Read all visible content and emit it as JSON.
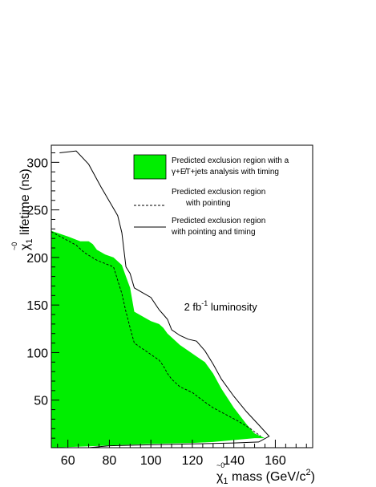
{
  "chart_data": {
    "type": "area",
    "xlim": [
      52,
      178
    ],
    "ylim": [
      0,
      318
    ],
    "x_ticks": [
      60,
      80,
      100,
      120,
      140,
      160
    ],
    "y_ticks": [
      50,
      100,
      150,
      200,
      250,
      300
    ],
    "x_tick_labels": [
      "60",
      "80",
      "100",
      "120",
      "140",
      "160"
    ],
    "y_tick_labels": [
      "50",
      "100",
      "150",
      "200",
      "250",
      "300"
    ],
    "xlabel": {
      "chi": "χ",
      "sub": "1",
      "sup": "~0",
      "rest": " mass (GeV/c",
      "exp": "2",
      "close": ")"
    },
    "ylabel": {
      "chi": "χ",
      "sub": "1",
      "sup": "~0",
      "rest": " lifetime (ns)"
    },
    "annotation": {
      "prefix": "2 fb",
      "exp": "-1",
      "suffix": " luminosity",
      "x": 116,
      "y": 150
    },
    "grid": false,
    "legend_position": "top-right",
    "series": [
      {
        "name": "Predicted exclusion region with a γ+E̸T+jets analysis with timing",
        "legend_lines": [
          "Predicted exclusion region with a",
          "γ+E̸T+jets analysis with timing"
        ],
        "style": "filled",
        "color": "#00ee00",
        "upper": [
          [
            52,
            228
          ],
          [
            60,
            222
          ],
          [
            66,
            217
          ],
          [
            70,
            217
          ],
          [
            72,
            214
          ],
          [
            74,
            208
          ],
          [
            78,
            203
          ],
          [
            82,
            200
          ],
          [
            86,
            192
          ],
          [
            88,
            180
          ],
          [
            90,
            168
          ],
          [
            92,
            143
          ],
          [
            96,
            138
          ],
          [
            100,
            133
          ],
          [
            104,
            130
          ],
          [
            106,
            126
          ],
          [
            108,
            120
          ],
          [
            110,
            116
          ],
          [
            114,
            108
          ],
          [
            118,
            102
          ],
          [
            122,
            96
          ],
          [
            126,
            90
          ],
          [
            130,
            78
          ],
          [
            134,
            62
          ],
          [
            140,
            42
          ],
          [
            146,
            25
          ],
          [
            150,
            15
          ],
          [
            155,
            10
          ]
        ],
        "lower": [
          [
            52,
            0
          ],
          [
            100,
            4
          ],
          [
            120,
            5
          ],
          [
            130,
            6
          ],
          [
            140,
            8
          ],
          [
            150,
            10
          ],
          [
            155,
            10
          ]
        ]
      },
      {
        "name": "Predicted exclusion region with pointing",
        "legend_lines": [
          "Predicted exclusion region",
          "with pointing"
        ],
        "style": "dashed",
        "color": "#000000",
        "points": [
          [
            52,
            227
          ],
          [
            58,
            220
          ],
          [
            64,
            213
          ],
          [
            68,
            205
          ],
          [
            74,
            197
          ],
          [
            82,
            190
          ],
          [
            86,
            162
          ],
          [
            88,
            143
          ],
          [
            90,
            126
          ],
          [
            92,
            110
          ],
          [
            96,
            104
          ],
          [
            100,
            98
          ],
          [
            104,
            92
          ],
          [
            106,
            86
          ],
          [
            108,
            78
          ],
          [
            110,
            72
          ],
          [
            114,
            64
          ],
          [
            120,
            58
          ],
          [
            126,
            48
          ],
          [
            130,
            42
          ],
          [
            136,
            35
          ],
          [
            142,
            28
          ],
          [
            148,
            20
          ],
          [
            153,
            12
          ]
        ]
      },
      {
        "name": "Predicted exclusion region with pointing and timing",
        "legend_lines": [
          "Predicted exclusion region",
          "with pointing and timing"
        ],
        "style": "solid",
        "color": "#000000",
        "points": [
          [
            56,
            310
          ],
          [
            64,
            312
          ],
          [
            70,
            298
          ],
          [
            76,
            274
          ],
          [
            84,
            244
          ],
          [
            86,
            226
          ],
          [
            88,
            190
          ],
          [
            90,
            183
          ],
          [
            92,
            168
          ],
          [
            96,
            163
          ],
          [
            100,
            158
          ],
          [
            104,
            145
          ],
          [
            106,
            140
          ],
          [
            108,
            135
          ],
          [
            110,
            124
          ],
          [
            114,
            118
          ],
          [
            118,
            114
          ],
          [
            122,
            112
          ],
          [
            126,
            102
          ],
          [
            130,
            88
          ],
          [
            134,
            72
          ],
          [
            140,
            54
          ],
          [
            146,
            38
          ],
          [
            152,
            24
          ],
          [
            157,
            12
          ],
          [
            152,
            6
          ],
          [
            140,
            5
          ],
          [
            120,
            4
          ],
          [
            100,
            3
          ],
          [
            80,
            2
          ],
          [
            70,
            0
          ]
        ]
      }
    ]
  }
}
